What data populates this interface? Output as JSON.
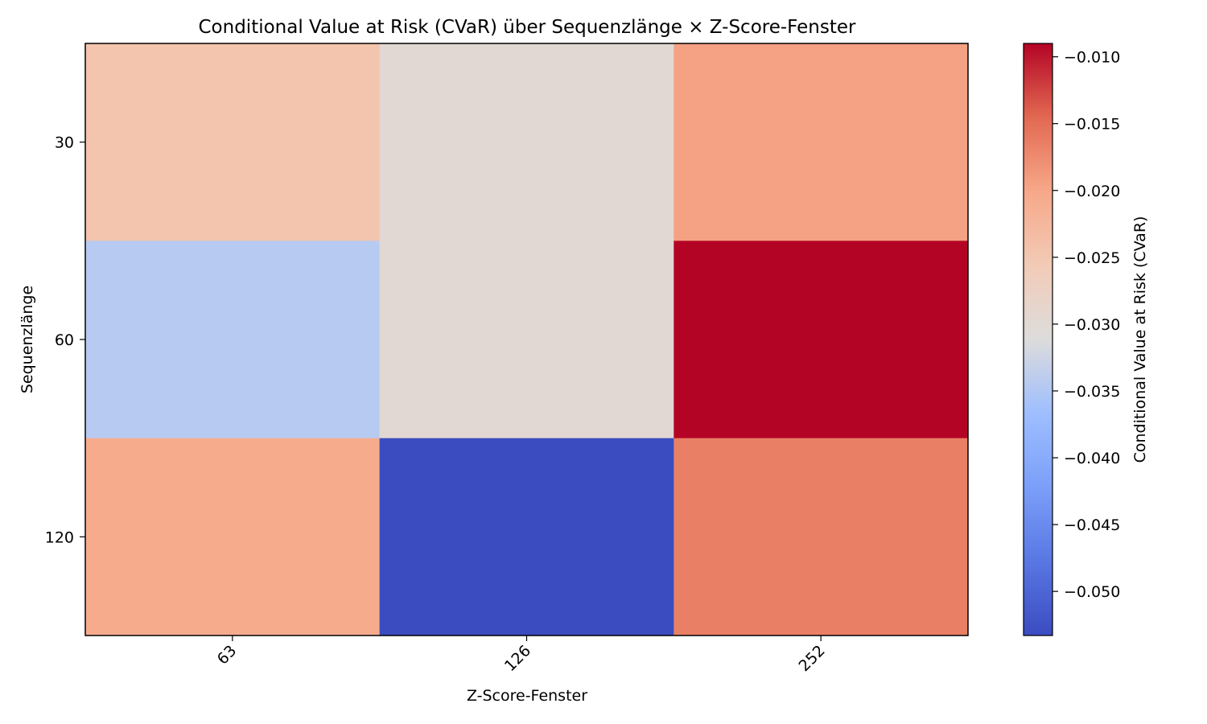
{
  "chart_data": {
    "type": "heatmap",
    "title": "Conditional Value at Risk (CVaR) über Sequenzlänge × Z-Score-Fenster",
    "xlabel": "Z-Score-Fenster",
    "ylabel": "Sequenzlänge",
    "x_categories": [
      "63",
      "126",
      "252"
    ],
    "y_categories": [
      "30",
      "60",
      "120"
    ],
    "values": [
      [
        -0.0245,
        -0.03,
        -0.0195
      ],
      [
        -0.0345,
        -0.03,
        -0.009
      ],
      [
        -0.0205,
        -0.0533,
        -0.0165
      ]
    ],
    "colorbar": {
      "label": "Conditional Value at Risk (CVaR)",
      "min": -0.0533,
      "max": -0.009,
      "ticks": [
        "−0.010",
        "−0.015",
        "−0.020",
        "−0.025",
        "−0.030",
        "−0.035",
        "−0.040",
        "−0.045",
        "−0.050"
      ],
      "tick_values": [
        -0.01,
        -0.015,
        -0.02,
        -0.025,
        -0.03,
        -0.035,
        -0.04,
        -0.045,
        -0.05
      ],
      "colormap": "coolwarm"
    },
    "grid": false
  }
}
